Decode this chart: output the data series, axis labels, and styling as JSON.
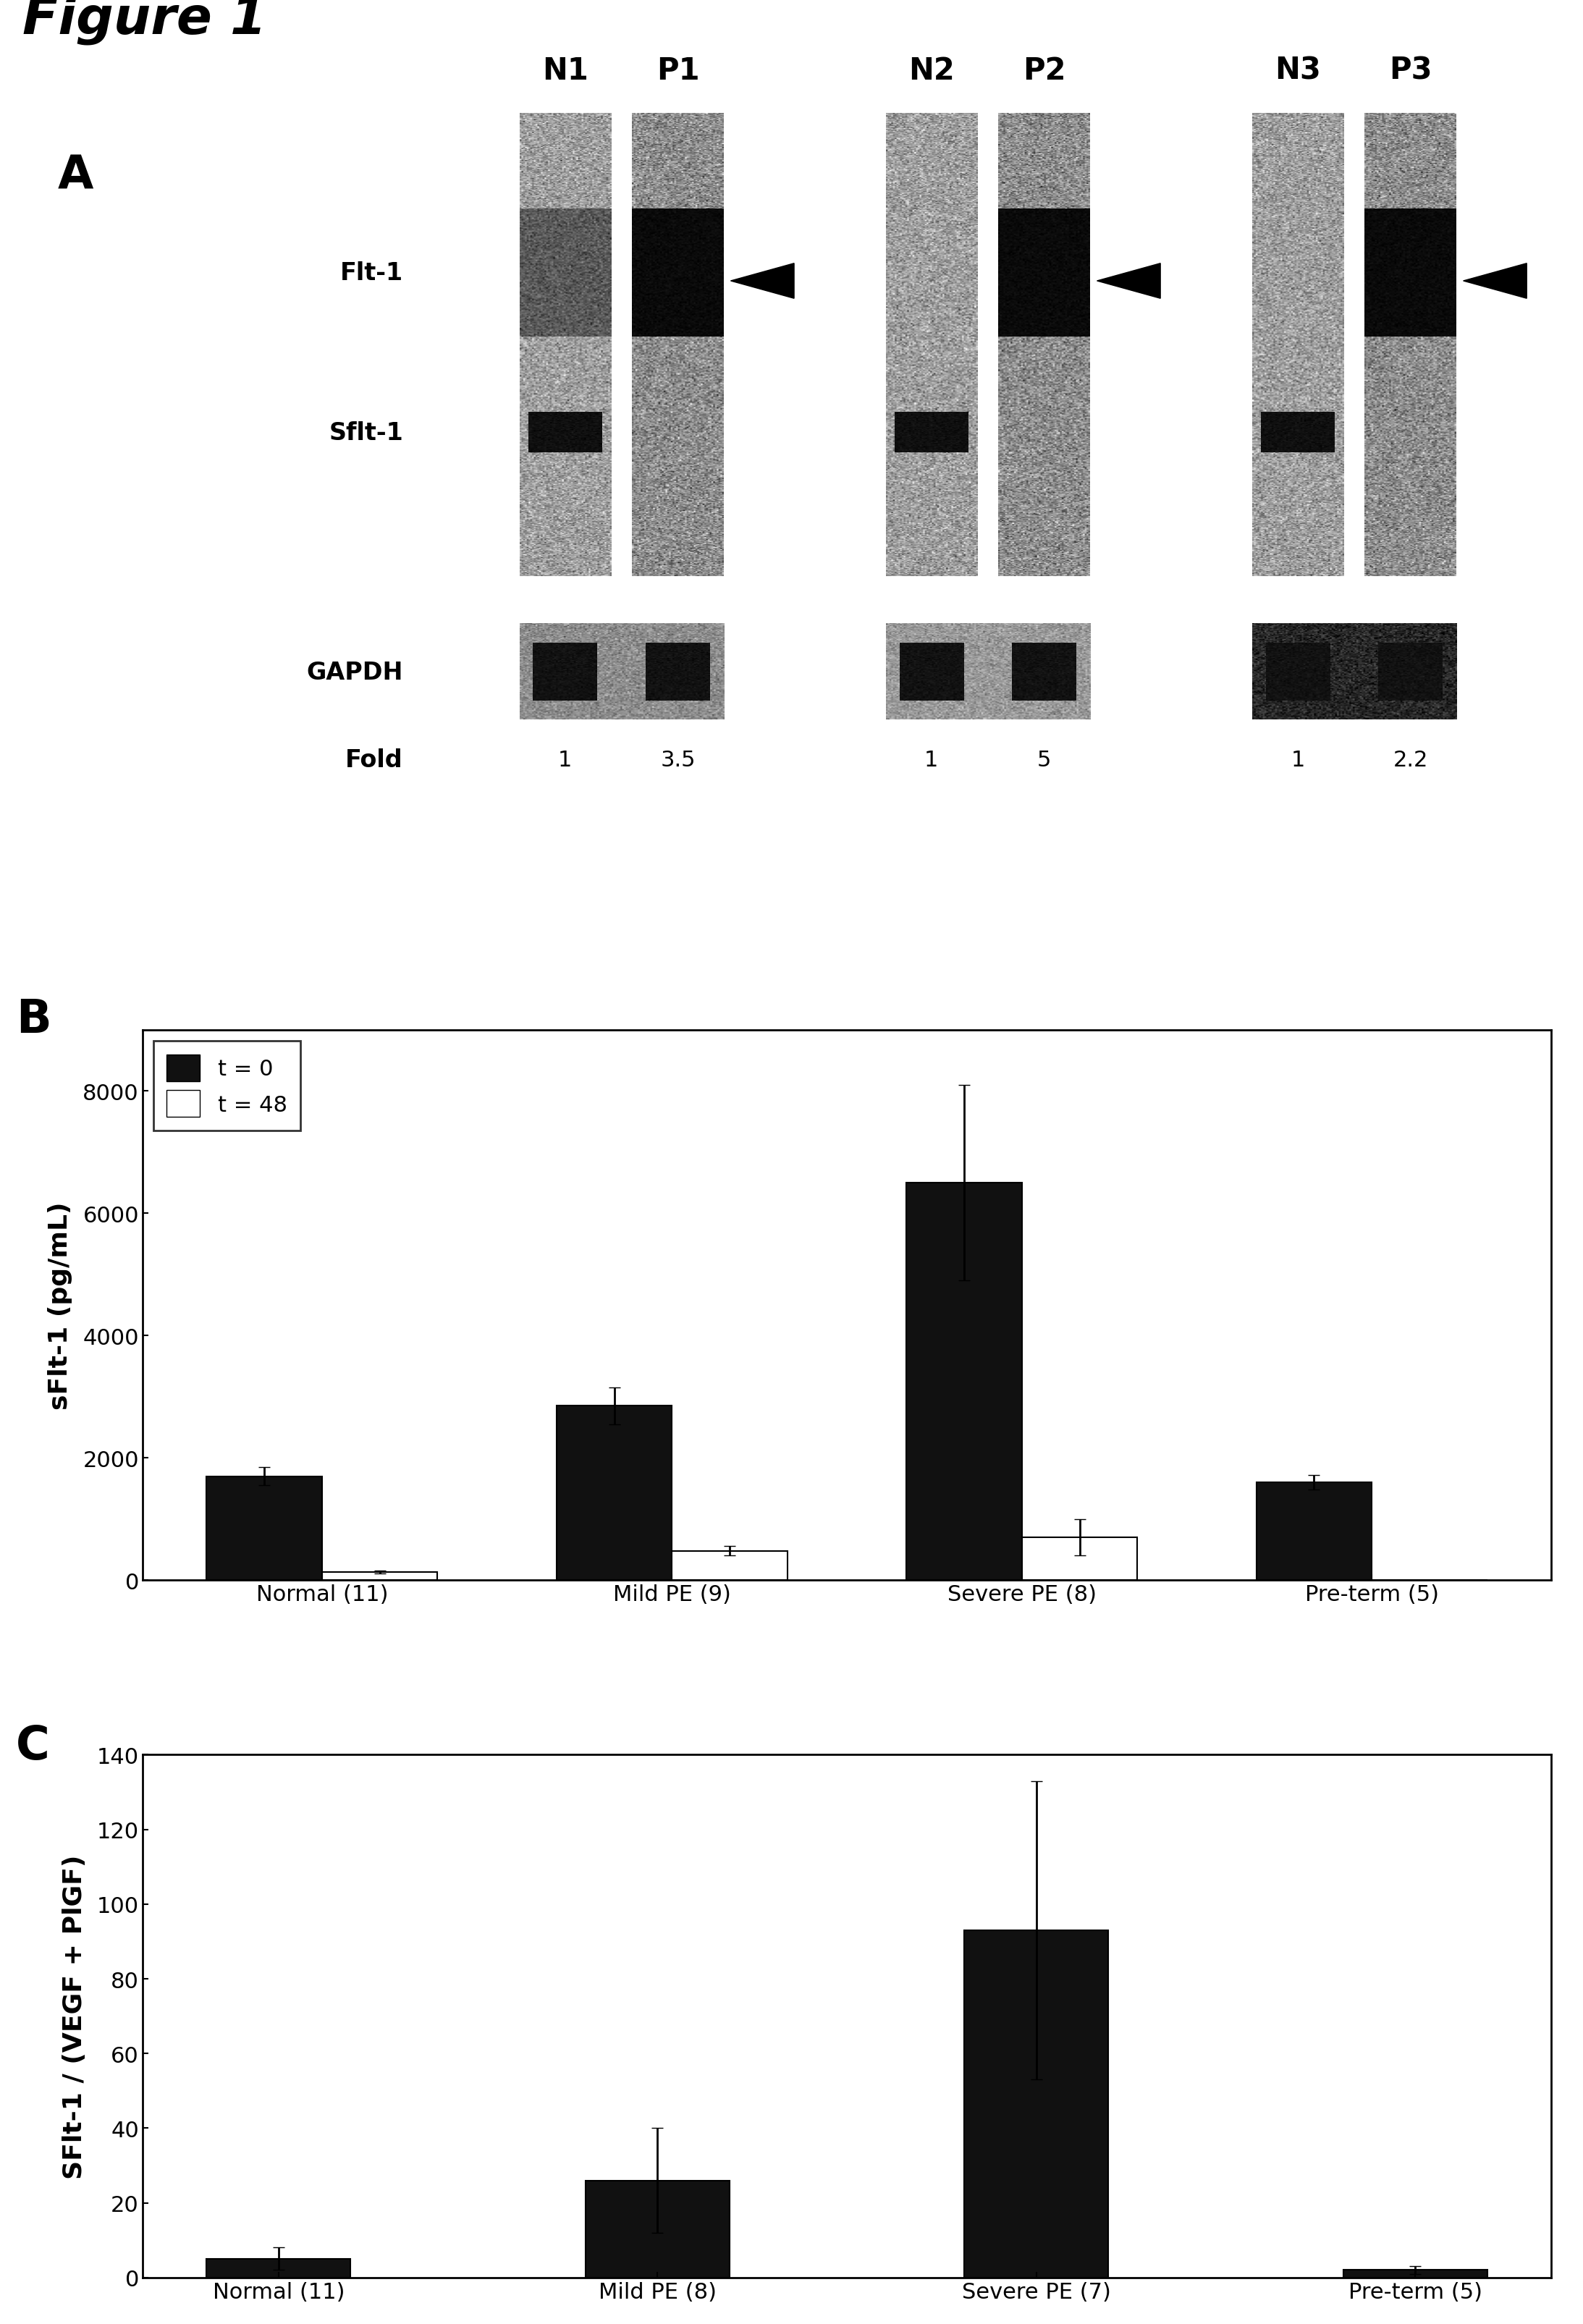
{
  "figure_title": "Figure 1",
  "panel_B": {
    "categories": [
      "Normal (11)",
      "Mild PE (9)",
      "Severe PE (8)",
      "Pre-term (5)"
    ],
    "t0_values": [
      1700,
      2850,
      6500,
      1600
    ],
    "t0_errors": [
      150,
      300,
      1600,
      120
    ],
    "t48_values": [
      130,
      480,
      700,
      0
    ],
    "t48_errors": [
      25,
      75,
      300,
      0
    ],
    "ylabel": "sFlt-1 (pg/mL)",
    "ylim": [
      0,
      9000
    ],
    "yticks": [
      0,
      2000,
      4000,
      6000,
      8000
    ],
    "legend_t0": "t = 0",
    "legend_t48": "t = 48"
  },
  "panel_C": {
    "categories": [
      "Normal (11)",
      "Mild PE (8)",
      "Severe PE (7)",
      "Pre-term (5)"
    ],
    "values": [
      5,
      26,
      93,
      2
    ],
    "errors": [
      3,
      14,
      40,
      1
    ],
    "ylabel": "SFlt-1 / (VEGF + PlGF)",
    "ylim": [
      0,
      140
    ],
    "yticks": [
      0,
      20,
      40,
      60,
      80,
      100,
      120,
      140
    ]
  },
  "blot_pairs": [
    {
      "label_n": "N1",
      "label_p": "P1",
      "fold_n": "1",
      "fold_p": "3.5"
    },
    {
      "label_n": "N2",
      "label_p": "P2",
      "fold_n": "1",
      "fold_p": "5"
    },
    {
      "label_n": "N3",
      "label_p": "P3",
      "fold_n": "1",
      "fold_p": "2.2"
    }
  ],
  "flt1_label": "Flt-1",
  "sflt1_label": "Sflt-1",
  "gapdh_label": "GAPDH",
  "fold_label": "Fold",
  "bar_black": "#111111",
  "bar_white": "#ffffff",
  "bar_edge": "#000000",
  "background": "#ffffff"
}
